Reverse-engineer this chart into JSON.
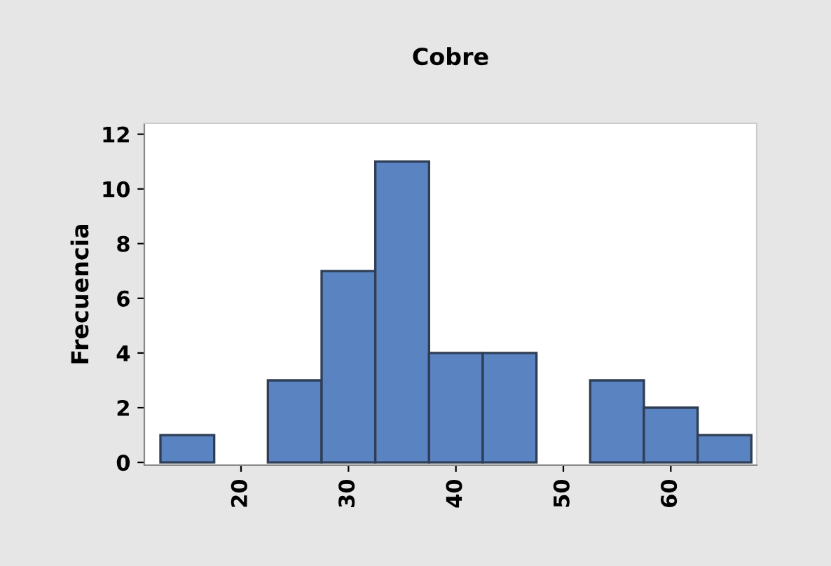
{
  "chart_data": {
    "type": "histogram",
    "title": "Cobre",
    "ylabel": "Frecuencia",
    "bins": [
      12.5,
      17.5,
      22.5,
      27.5,
      32.5,
      37.5,
      42.5,
      47.5,
      52.5,
      57.5,
      62.5,
      67.5
    ],
    "values": [
      1,
      0,
      3,
      7,
      11,
      4,
      4,
      0,
      3,
      2,
      1
    ],
    "color": "#5a83c2",
    "xlim": [
      11,
      68
    ],
    "xticks": [
      20,
      30,
      40,
      50,
      60
    ],
    "ylim": [
      -0.1,
      12.4
    ],
    "yticks": [
      0,
      2,
      4,
      6,
      8,
      10,
      12
    ],
    "grid": false
  }
}
